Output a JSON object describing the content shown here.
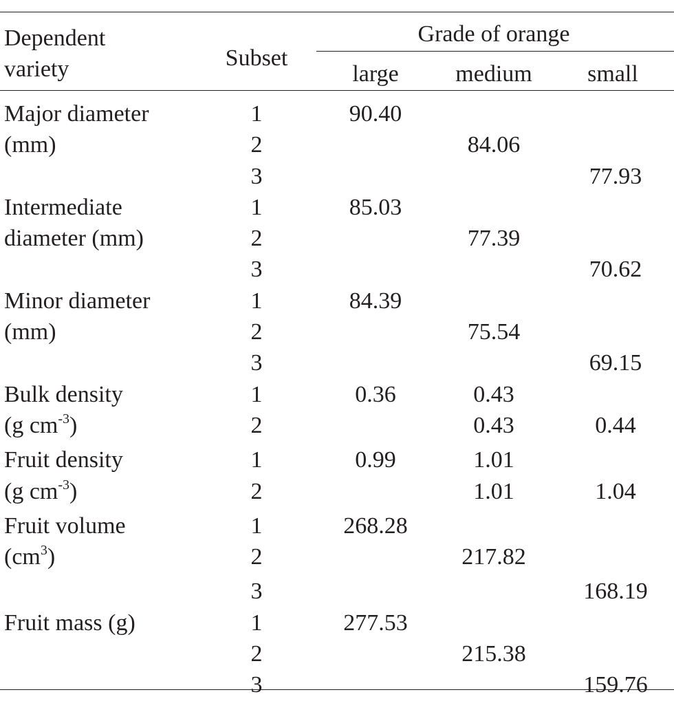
{
  "header": {
    "dependent_line1": "Dependent",
    "dependent_line2": "variety",
    "subset": "Subset",
    "group": "Grade of orange",
    "grades": [
      "large",
      "medium",
      "small"
    ]
  },
  "rows": [
    {
      "variety": [
        "Major diameter",
        "(mm)",
        ""
      ],
      "subsets": [
        {
          "subset": "1",
          "large": "90.40",
          "medium": "",
          "small": ""
        },
        {
          "subset": "2",
          "large": "",
          "medium": "84.06",
          "small": ""
        },
        {
          "subset": "3",
          "large": "",
          "medium": "",
          "small": "77.93"
        }
      ]
    },
    {
      "variety": [
        "Intermediate",
        "diameter (mm)",
        ""
      ],
      "subsets": [
        {
          "subset": "1",
          "large": "85.03",
          "medium": "",
          "small": ""
        },
        {
          "subset": "2",
          "large": "",
          "medium": "77.39",
          "small": ""
        },
        {
          "subset": "3",
          "large": "",
          "medium": "",
          "small": "70.62"
        }
      ]
    },
    {
      "variety": [
        "Minor diameter",
        "(mm)",
        ""
      ],
      "subsets": [
        {
          "subset": "1",
          "large": "84.39",
          "medium": "",
          "small": ""
        },
        {
          "subset": "2",
          "large": "",
          "medium": "75.54",
          "small": ""
        },
        {
          "subset": "3",
          "large": "",
          "medium": "",
          "small": "69.15"
        }
      ]
    },
    {
      "variety": [
        "Bulk density",
        "(g cm",
        "-3",
        ")"
      ],
      "subsets": [
        {
          "subset": "1",
          "large": "0.36",
          "medium": "0.43",
          "small": ""
        },
        {
          "subset": "2",
          "large": "",
          "medium": "0.43",
          "small": "0.44"
        }
      ]
    },
    {
      "variety": [
        "Fruit density",
        "(g cm",
        "-3",
        ")"
      ],
      "subsets": [
        {
          "subset": "1",
          "large": "0.99",
          "medium": "1.01",
          "small": ""
        },
        {
          "subset": "2",
          "large": "",
          "medium": "1.01",
          "small": "1.04"
        }
      ]
    },
    {
      "variety": [
        "Fruit volume",
        "(cm",
        "3",
        ")"
      ],
      "subsets": [
        {
          "subset": "1",
          "large": "268.28",
          "medium": "",
          "small": ""
        },
        {
          "subset": "2",
          "large": "",
          "medium": "217.82",
          "small": ""
        },
        {
          "subset": "3",
          "large": "",
          "medium": "",
          "small": "168.19"
        }
      ]
    },
    {
      "variety": [
        "Fruit mass (g)",
        "",
        ""
      ],
      "subsets": [
        {
          "subset": "1",
          "large": "277.53",
          "medium": "",
          "small": ""
        },
        {
          "subset": "2",
          "large": "",
          "medium": "215.38",
          "small": ""
        },
        {
          "subset": "3",
          "large": "",
          "medium": "",
          "small": "159.76"
        }
      ]
    }
  ]
}
